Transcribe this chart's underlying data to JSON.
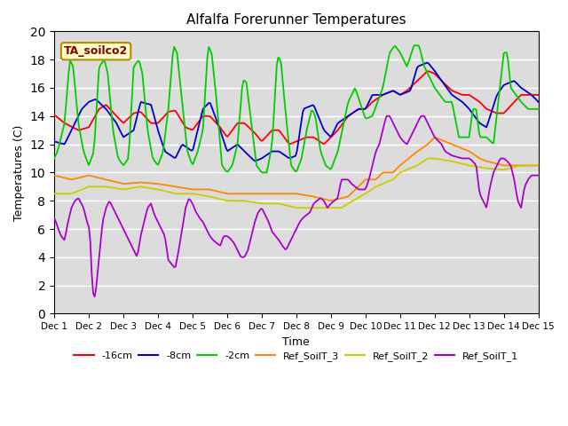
{
  "title": "Alfalfa Forerunner Temperatures",
  "xlabel": "Time",
  "ylabel": "Temperatures (C)",
  "annotation": "TA_soilco2",
  "ylim": [
    0,
    20
  ],
  "yticks": [
    0,
    2,
    4,
    6,
    8,
    10,
    12,
    14,
    16,
    18,
    20
  ],
  "background_color": "#dcdcdc",
  "series": {
    "neg16cm": {
      "label": "-16cm",
      "color": "#ff0000"
    },
    "neg8cm": {
      "label": "-8cm",
      "color": "#0000cc"
    },
    "neg2cm": {
      "label": "-2cm",
      "color": "#00cc00"
    },
    "ref_soilt3": {
      "label": "Ref_SoilT_3",
      "color": "#ff8800"
    },
    "ref_soilt2": {
      "label": "Ref_SoilT_2",
      "color": "#cccc00"
    },
    "ref_soilt1": {
      "label": "Ref_SoilT_1",
      "color": "#aa00cc"
    }
  },
  "xtick_labels": [
    "Dec 1",
    "Dec 2",
    "Dec 3",
    "Dec 4",
    "Dec 5",
    "Dec 6",
    "Dec 7",
    "Dec 8",
    "Dec 9",
    "Dec 10",
    "Dec 11",
    "Dec 12",
    "Dec 13",
    "Dec 14",
    "Dec 15"
  ]
}
